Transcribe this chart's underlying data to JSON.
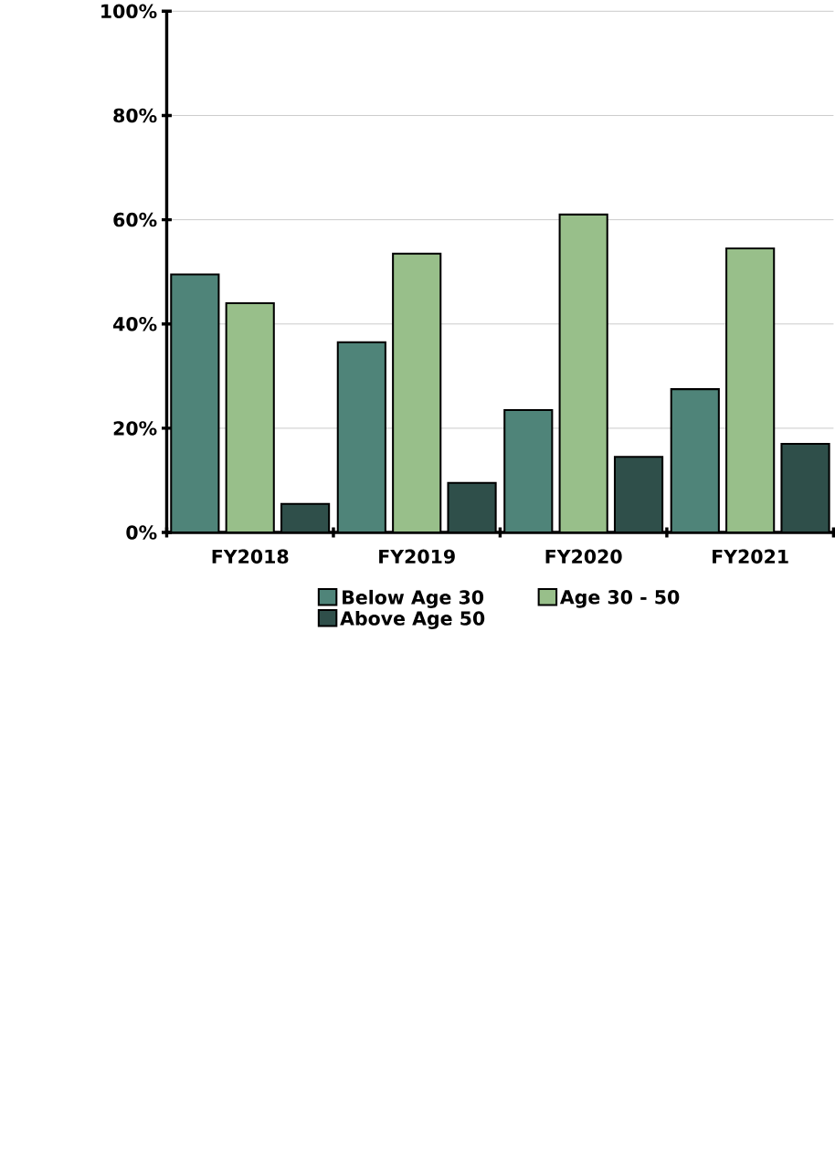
{
  "chart_data": {
    "type": "bar",
    "categories": [
      "FY2018",
      "FY2019",
      "FY2020",
      "FY2021"
    ],
    "series": [
      {
        "name": "Below Age 30",
        "color": "#4f8479",
        "values": [
          49.5,
          36.5,
          23.5,
          27.5
        ]
      },
      {
        "name": "Age 30 - 50",
        "color": "#98bf8a",
        "values": [
          44,
          53.5,
          61,
          54.5
        ]
      },
      {
        "name": "Above Age 50",
        "color": "#2f4f4a",
        "values": [
          5.5,
          9.5,
          14.5,
          17
        ]
      }
    ],
    "ylim": [
      0,
      100
    ],
    "yticks": [
      {
        "value": 0,
        "label": "0%"
      },
      {
        "value": 20,
        "label": "20%"
      },
      {
        "value": 40,
        "label": "40%"
      },
      {
        "value": 60,
        "label": "60%"
      },
      {
        "value": 80,
        "label": "80%"
      },
      {
        "value": 100,
        "label": "100%"
      }
    ],
    "grid": "y",
    "legend": "bottom"
  }
}
